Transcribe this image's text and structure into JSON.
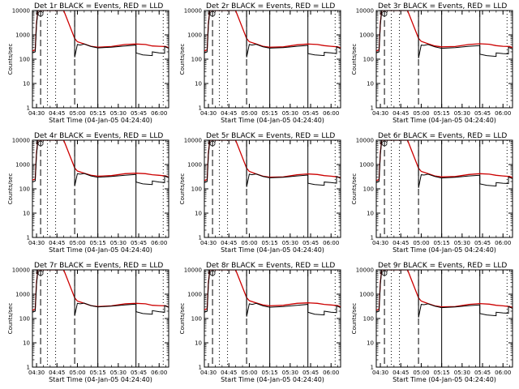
{
  "chart_data": {
    "type": "line",
    "y_scale": "log",
    "ylim": [
      1,
      10000
    ],
    "x_range": [
      "04:27",
      "06:07"
    ],
    "time_axis": "UT",
    "grid": false,
    "y_ticks": [
      "1",
      "10",
      "100",
      "1000",
      "10000"
    ],
    "x_ticks": [
      "04:30",
      "04:45",
      "05:00",
      "05:15",
      "05:30",
      "05:45",
      "06:00"
    ],
    "ylabel": "Counts/sec",
    "xlabel": "Start Time (04-Jan-05 04:24:40)",
    "colors": {
      "events": "#000000",
      "lld": "#cc0000"
    },
    "markers": {
      "dashed": [
        "04:33",
        "04:58"
      ],
      "dotted": [
        "04:38",
        "04:44",
        "06:03"
      ],
      "solid": [
        "05:15",
        "05:43"
      ],
      "flags": [
        "04:33",
        "05:43"
      ]
    },
    "series_defs": [
      {
        "name": "Events",
        "color": "#000000"
      },
      {
        "name": "LLD",
        "color": "#cc0000"
      }
    ],
    "panels": [
      {
        "title": "Det 1r BLACK = Events, RED = LLD",
        "ylabel": "Counts/sec",
        "xlabel": "Start Time (04-Jan-05 04:24:40)",
        "lld_x": [
          "04:27",
          "04:29",
          "04:30",
          "04:31",
          "04:32",
          "04:33",
          "04:34",
          "04:40",
          "04:50",
          "04:58",
          "05:00",
          "05:05",
          "05:10",
          "05:15",
          "05:25",
          "05:35",
          "05:43",
          "05:50",
          "05:55",
          "06:00",
          "06:05",
          "06:07"
        ],
        "lld": [
          220,
          240,
          3000,
          10000,
          10000,
          10000,
          10000,
          10000,
          10000,
          700,
          520,
          420,
          340,
          310,
          330,
          400,
          420,
          400,
          350,
          340,
          330,
          290
        ],
        "events_x": [
          "04:27",
          "04:29",
          "04:30",
          "04:31",
          "04:32",
          "04:33",
          "04:58",
          "04:58",
          "05:00",
          "05:02",
          "05:03",
          "05:05",
          "05:10",
          "05:15",
          "05:25",
          "05:35",
          "05:43",
          "05:43",
          "05:48",
          "05:55",
          "05:55",
          "06:00",
          "06:04",
          "06:04",
          "06:07"
        ],
        "events": [
          180,
          200,
          2500,
          10000,
          10000,
          10000,
          10000,
          120,
          400,
          380,
          390,
          420,
          330,
          290,
          310,
          350,
          380,
          180,
          150,
          140,
          200,
          180,
          175,
          330,
          280
        ]
      },
      {
        "title": "Det 2r BLACK = Events, RED = LLD",
        "ylabel": "Counts/sec",
        "xlabel": "Start Time (04-Jan-05 04:24:40)",
        "lld_x": [
          "04:27",
          "04:29",
          "04:30",
          "04:31",
          "04:32",
          "04:33",
          "04:34",
          "04:40",
          "04:50",
          "04:58",
          "05:00",
          "05:05",
          "05:10",
          "05:15",
          "05:25",
          "05:35",
          "05:43",
          "05:50",
          "05:55",
          "06:00",
          "06:05",
          "06:07"
        ],
        "lld": [
          220,
          240,
          3000,
          10000,
          10000,
          10000,
          10000,
          10000,
          10000,
          700,
          520,
          420,
          340,
          310,
          320,
          390,
          420,
          400,
          360,
          340,
          320,
          290
        ],
        "events_x": [
          "04:27",
          "04:29",
          "04:30",
          "04:31",
          "04:32",
          "04:33",
          "04:58",
          "04:58",
          "05:00",
          "05:02",
          "05:03",
          "05:05",
          "05:10",
          "05:15",
          "05:25",
          "05:35",
          "05:43",
          "05:43",
          "05:48",
          "05:55",
          "05:55",
          "06:00",
          "06:04",
          "06:04",
          "06:07"
        ],
        "events": [
          180,
          200,
          2500,
          10000,
          10000,
          10000,
          10000,
          120,
          400,
          380,
          390,
          410,
          320,
          285,
          300,
          340,
          370,
          170,
          150,
          140,
          190,
          180,
          170,
          320,
          270
        ]
      },
      {
        "title": "Det 3r BLACK = Events, RED = LLD",
        "ylabel": "Counts/sec",
        "xlabel": "Start Time (04-Jan-05 04:24:40)",
        "lld_x": [
          "04:27",
          "04:29",
          "04:30",
          "04:31",
          "04:32",
          "04:33",
          "04:34",
          "04:40",
          "04:50",
          "04:58",
          "05:00",
          "05:05",
          "05:10",
          "05:15",
          "05:25",
          "05:35",
          "05:43",
          "05:50",
          "05:55",
          "06:00",
          "06:05",
          "06:07"
        ],
        "lld": [
          220,
          240,
          3000,
          10000,
          10000,
          10000,
          10000,
          10000,
          10000,
          720,
          540,
          430,
          350,
          320,
          330,
          400,
          430,
          410,
          360,
          340,
          330,
          300
        ],
        "events_x": [
          "04:27",
          "04:29",
          "04:30",
          "04:31",
          "04:32",
          "04:33",
          "04:58",
          "04:58",
          "05:00",
          "05:02",
          "05:03",
          "05:05",
          "05:10",
          "05:15",
          "05:25",
          "05:35",
          "05:43",
          "05:43",
          "05:48",
          "05:55",
          "05:55",
          "06:00",
          "06:04",
          "06:04",
          "06:07"
        ],
        "events": [
          180,
          200,
          2500,
          10000,
          10000,
          10000,
          10000,
          110,
          380,
          370,
          380,
          400,
          320,
          280,
          300,
          340,
          360,
          160,
          140,
          130,
          180,
          170,
          165,
          310,
          260
        ]
      },
      {
        "title": "Det 4r BLACK = Events, RED = LLD",
        "ylabel": "Counts/sec",
        "xlabel": "Start Time (04-Jan-05 04:24:40)",
        "lld_x": [
          "04:27",
          "04:29",
          "04:30",
          "04:31",
          "04:32",
          "04:33",
          "04:34",
          "04:40",
          "04:50",
          "04:58",
          "05:00",
          "05:05",
          "05:10",
          "05:15",
          "05:25",
          "05:35",
          "05:43",
          "05:50",
          "05:55",
          "06:00",
          "06:05",
          "06:07"
        ],
        "lld": [
          230,
          250,
          3000,
          10000,
          10000,
          10000,
          10000,
          10000,
          10000,
          720,
          540,
          440,
          360,
          330,
          350,
          420,
          440,
          420,
          380,
          360,
          340,
          300
        ],
        "events_x": [
          "04:27",
          "04:29",
          "04:30",
          "04:31",
          "04:32",
          "04:33",
          "04:58",
          "04:58",
          "05:00",
          "05:02",
          "05:03",
          "05:05",
          "05:10",
          "05:15",
          "05:25",
          "05:35",
          "05:43",
          "05:43",
          "05:48",
          "05:55",
          "05:55",
          "06:00",
          "06:04",
          "06:04",
          "06:07"
        ],
        "events": [
          190,
          210,
          2500,
          10000,
          10000,
          10000,
          10000,
          130,
          420,
          400,
          410,
          430,
          340,
          300,
          320,
          360,
          390,
          190,
          160,
          150,
          210,
          190,
          180,
          340,
          290
        ]
      },
      {
        "title": "Det 5r BLACK = Events, RED = LLD",
        "ylabel": "Counts/sec",
        "xlabel": "Start Time (04-Jan-05 04:24:40)",
        "lld_x": [
          "04:27",
          "04:29",
          "04:30",
          "04:31",
          "04:32",
          "04:33",
          "04:34",
          "04:40",
          "04:50",
          "04:58",
          "05:00",
          "05:05",
          "05:10",
          "05:15",
          "05:25",
          "05:35",
          "05:43",
          "05:50",
          "05:55",
          "06:00",
          "06:05",
          "06:07"
        ],
        "lld": [
          220,
          240,
          3000,
          10000,
          10000,
          10000,
          10000,
          10000,
          10000,
          700,
          520,
          410,
          330,
          300,
          310,
          380,
          410,
          390,
          350,
          330,
          310,
          280
        ],
        "events_x": [
          "04:27",
          "04:29",
          "04:30",
          "04:31",
          "04:32",
          "04:33",
          "04:58",
          "04:58",
          "05:00",
          "05:02",
          "05:03",
          "05:05",
          "05:10",
          "05:15",
          "05:25",
          "05:35",
          "05:43",
          "05:43",
          "05:48",
          "05:55",
          "05:55",
          "06:00",
          "06:04",
          "06:04",
          "06:07"
        ],
        "events": [
          180,
          200,
          2500,
          10000,
          10000,
          10000,
          10000,
          120,
          400,
          380,
          390,
          410,
          320,
          285,
          300,
          340,
          370,
          170,
          150,
          140,
          190,
          180,
          170,
          320,
          270
        ]
      },
      {
        "title": "Det 6r BLACK = Events, RED = LLD",
        "ylabel": "Counts/sec",
        "xlabel": "Start Time (04-Jan-05 04:24:40)",
        "lld_x": [
          "04:27",
          "04:29",
          "04:30",
          "04:31",
          "04:32",
          "04:33",
          "04:34",
          "04:40",
          "04:50",
          "04:58",
          "05:00",
          "05:05",
          "05:10",
          "05:15",
          "05:25",
          "05:35",
          "05:43",
          "05:50",
          "05:55",
          "06:00",
          "06:05",
          "06:07"
        ],
        "lld": [
          220,
          240,
          3000,
          10000,
          10000,
          10000,
          10000,
          10000,
          10000,
          700,
          520,
          420,
          340,
          310,
          320,
          390,
          420,
          400,
          360,
          340,
          320,
          290
        ],
        "events_x": [
          "04:27",
          "04:29",
          "04:30",
          "04:31",
          "04:32",
          "04:33",
          "04:58",
          "04:58",
          "05:00",
          "05:02",
          "05:03",
          "05:05",
          "05:10",
          "05:15",
          "05:25",
          "05:35",
          "05:43",
          "05:43",
          "05:48",
          "05:55",
          "05:55",
          "06:00",
          "06:04",
          "06:04",
          "06:07"
        ],
        "events": [
          180,
          200,
          2500,
          10000,
          10000,
          10000,
          10000,
          110,
          380,
          370,
          380,
          400,
          320,
          280,
          300,
          340,
          360,
          160,
          140,
          130,
          180,
          170,
          165,
          310,
          260
        ]
      },
      {
        "title": "Det 7r BLACK = Events, RED = LLD",
        "ylabel": "Counts/sec",
        "xlabel": "Start Time (04-Jan-05 04:24:40)",
        "lld_x": [
          "04:27",
          "04:29",
          "04:30",
          "04:31",
          "04:32",
          "04:33",
          "04:34",
          "04:40",
          "04:50",
          "04:58",
          "05:00",
          "05:05",
          "05:10",
          "05:15",
          "05:25",
          "05:35",
          "05:43",
          "05:50",
          "05:55",
          "06:00",
          "06:05",
          "06:07"
        ],
        "lld": [
          220,
          240,
          3000,
          10000,
          10000,
          10000,
          10000,
          10000,
          10000,
          700,
          520,
          420,
          340,
          310,
          330,
          400,
          420,
          400,
          350,
          340,
          330,
          290
        ],
        "events_x": [
          "04:27",
          "04:29",
          "04:30",
          "04:31",
          "04:32",
          "04:33",
          "04:58",
          "04:58",
          "05:00",
          "05:02",
          "05:03",
          "05:05",
          "05:10",
          "05:15",
          "05:25",
          "05:35",
          "05:43",
          "05:43",
          "05:48",
          "05:55",
          "05:55",
          "06:00",
          "06:04",
          "06:04",
          "06:07"
        ],
        "events": [
          180,
          200,
          2500,
          10000,
          10000,
          10000,
          10000,
          130,
          420,
          400,
          410,
          430,
          340,
          300,
          320,
          360,
          390,
          190,
          160,
          150,
          210,
          190,
          180,
          340,
          290
        ]
      },
      {
        "title": "Det 8r BLACK = Events, RED = LLD",
        "ylabel": "Counts/sec",
        "xlabel": "Start Time (04-Jan-05 04:24:40)",
        "lld_x": [
          "04:27",
          "04:29",
          "04:30",
          "04:31",
          "04:32",
          "04:33",
          "04:34",
          "04:40",
          "04:50",
          "04:58",
          "05:00",
          "05:05",
          "05:10",
          "05:15",
          "05:25",
          "05:35",
          "05:43",
          "05:50",
          "05:55",
          "06:00",
          "06:05",
          "06:07"
        ],
        "lld": [
          230,
          250,
          3000,
          10000,
          10000,
          10000,
          10000,
          10000,
          10000,
          720,
          540,
          440,
          360,
          330,
          350,
          420,
          440,
          420,
          380,
          360,
          340,
          300
        ],
        "events_x": [
          "04:27",
          "04:29",
          "04:30",
          "04:31",
          "04:32",
          "04:33",
          "04:58",
          "04:58",
          "05:00",
          "05:02",
          "05:03",
          "05:05",
          "05:10",
          "05:15",
          "05:25",
          "05:35",
          "05:43",
          "05:43",
          "05:48",
          "05:55",
          "05:55",
          "06:00",
          "06:04",
          "06:04",
          "06:07"
        ],
        "events": [
          180,
          200,
          2500,
          10000,
          10000,
          10000,
          10000,
          120,
          400,
          380,
          390,
          420,
          330,
          290,
          310,
          350,
          380,
          180,
          150,
          140,
          200,
          180,
          175,
          330,
          280
        ]
      },
      {
        "title": "Det 9r BLACK = Events, RED = LLD",
        "ylabel": "Counts/sec",
        "xlabel": "Start Time (04-Jan-05 04:24:40)",
        "lld_x": [
          "04:27",
          "04:29",
          "04:30",
          "04:31",
          "04:32",
          "04:33",
          "04:34",
          "04:40",
          "04:50",
          "04:58",
          "05:00",
          "05:05",
          "05:10",
          "05:15",
          "05:25",
          "05:35",
          "05:43",
          "05:50",
          "05:55",
          "06:00",
          "06:05",
          "06:07"
        ],
        "lld": [
          220,
          240,
          3000,
          10000,
          10000,
          10000,
          10000,
          10000,
          10000,
          700,
          520,
          410,
          330,
          300,
          310,
          380,
          410,
          390,
          350,
          330,
          310,
          280
        ],
        "events_x": [
          "04:27",
          "04:29",
          "04:30",
          "04:31",
          "04:32",
          "04:33",
          "04:58",
          "04:58",
          "05:00",
          "05:02",
          "05:03",
          "05:05",
          "05:10",
          "05:15",
          "05:25",
          "05:35",
          "05:43",
          "05:43",
          "05:48",
          "05:55",
          "05:55",
          "06:00",
          "06:04",
          "06:04",
          "06:07"
        ],
        "events": [
          180,
          200,
          2500,
          10000,
          10000,
          10000,
          10000,
          110,
          380,
          370,
          380,
          400,
          320,
          280,
          300,
          340,
          360,
          160,
          140,
          130,
          180,
          170,
          165,
          310,
          260
        ]
      }
    ]
  }
}
